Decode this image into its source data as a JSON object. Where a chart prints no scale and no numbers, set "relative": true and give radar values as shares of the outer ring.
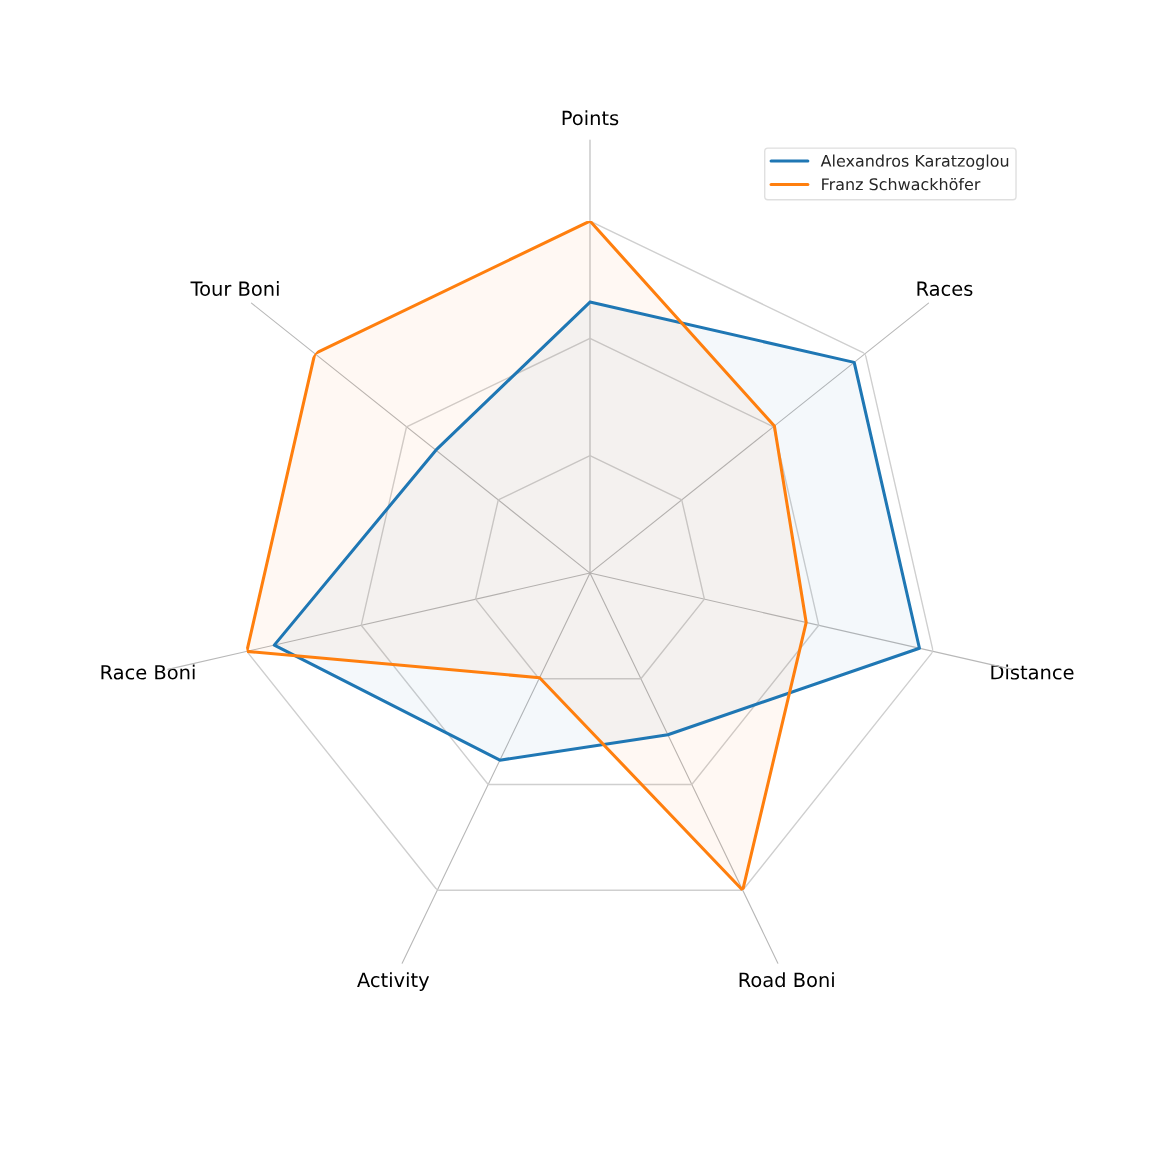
{
  "chart_data": {
    "type": "radar",
    "relative": true,
    "grid": true,
    "legend": "top right",
    "categories": [
      "Points",
      "Races",
      "Distance",
      "Road Boni",
      "Activity",
      "Race Boni",
      "Tour Boni"
    ],
    "series": [
      {
        "name": "Alexandros Karatzoglou",
        "color": "#1f77b4",
        "values": [
          0.77,
          0.96,
          0.96,
          0.51,
          0.59,
          0.92,
          0.56
        ]
      },
      {
        "name": "Franz Schwackhöfer",
        "color": "#ff7f0e",
        "values": [
          1.0,
          0.67,
          0.63,
          1.0,
          0.33,
          1.0,
          1.0
        ]
      }
    ]
  }
}
